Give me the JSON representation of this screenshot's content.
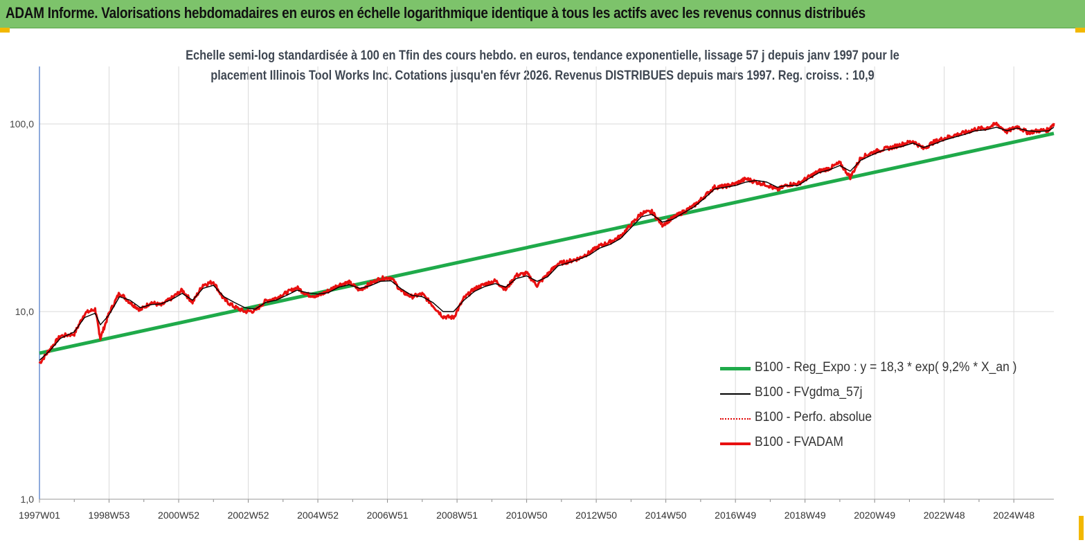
{
  "banner": {
    "title": "ADAM Informe. Valorisations hebdomadaires en euros en échelle logarithmique identique à tous les actifs avec les revenus connus distribués"
  },
  "chart_data": {
    "type": "line",
    "title": "",
    "subtitle_lines": [
      "Echelle semi-log standardisée à 100 en Tfin des cours hebdo. en euros, tendance exponentielle, lissage 57 j depuis janv 1997 pour le",
      "placement Illinois Tool Works Inc. Cotations jusqu'en févr 2026. Revenus DISTRIBUES depuis mars 1997. Reg. croiss. : 10,9"
    ],
    "xlabel": "",
    "ylabel": "",
    "y_scale": "log",
    "ylim": [
      1,
      200
    ],
    "y_ticks": [
      {
        "value": 1,
        "label": "1,0"
      },
      {
        "value": 10,
        "label": "10,0"
      },
      {
        "value": 100,
        "label": "100,0"
      }
    ],
    "x_range": [
      1997.0,
      2026.15
    ],
    "x_ticks": [
      {
        "value": 1997.0,
        "label": "1997W01"
      },
      {
        "value": 1999.0,
        "label": "1998W53"
      },
      {
        "value": 2001.0,
        "label": "2000W52"
      },
      {
        "value": 2003.0,
        "label": "2002W52"
      },
      {
        "value": 2005.0,
        "label": "2004W52"
      },
      {
        "value": 2007.0,
        "label": "2006W51"
      },
      {
        "value": 2009.0,
        "label": "2008W51"
      },
      {
        "value": 2011.0,
        "label": "2010W50"
      },
      {
        "value": 2013.0,
        "label": "2012W50"
      },
      {
        "value": 2015.0,
        "label": "2014W50"
      },
      {
        "value": 2017.0,
        "label": "2016W49"
      },
      {
        "value": 2019.0,
        "label": "2018W49"
      },
      {
        "value": 2021.0,
        "label": "2020W49"
      },
      {
        "value": 2023.0,
        "label": "2022W48"
      },
      {
        "value": 2025.0,
        "label": "2024W48"
      }
    ],
    "grid": true,
    "legend_position": "right",
    "colors": {
      "reg": "#1faa4a",
      "fvgdma": "#000000",
      "perfo": "#e00000",
      "fvadam": "#e81010",
      "axis": "#4472c4",
      "grid": "#d9d9d9"
    },
    "series": [
      {
        "name": "B100 - Reg_Expo : y = 18,3 * exp( 9,2% *  X_an )",
        "style": "reg",
        "x": [
          1997.0,
          2026.15
        ],
        "y": [
          6.0,
          89.0
        ]
      },
      {
        "name": "B100 - FVgdma_57j",
        "style": "fvgdma",
        "x": [
          1997.0,
          1997.3,
          1997.6,
          1998.0,
          1998.3,
          1998.6,
          1998.75,
          1999.0,
          1999.3,
          1999.6,
          1999.9,
          2000.2,
          2000.5,
          2000.8,
          2001.1,
          2001.4,
          2001.7,
          2002.0,
          2002.3,
          2002.6,
          2002.9,
          2003.2,
          2003.5,
          2003.8,
          2004.1,
          2004.4,
          2004.7,
          2005.0,
          2005.3,
          2005.6,
          2005.9,
          2006.2,
          2006.5,
          2006.8,
          2007.1,
          2007.4,
          2007.7,
          2008.0,
          2008.3,
          2008.6,
          2008.9,
          2009.2,
          2009.5,
          2009.8,
          2010.1,
          2010.4,
          2010.7,
          2011.0,
          2011.3,
          2011.6,
          2011.9,
          2012.2,
          2012.5,
          2012.8,
          2013.1,
          2013.4,
          2013.7,
          2014.0,
          2014.3,
          2014.6,
          2014.9,
          2015.2,
          2015.5,
          2015.8,
          2016.1,
          2016.4,
          2016.7,
          2017.0,
          2017.3,
          2017.6,
          2017.9,
          2018.2,
          2018.5,
          2018.8,
          2019.1,
          2019.4,
          2019.7,
          2020.0,
          2020.3,
          2020.6,
          2020.9,
          2021.2,
          2021.5,
          2021.8,
          2022.1,
          2022.4,
          2022.7,
          2023.0,
          2023.3,
          2023.6,
          2023.9,
          2024.2,
          2024.5,
          2024.8,
          2025.1,
          2025.4,
          2025.7,
          2026.0,
          2026.15
        ],
        "y": [
          5.5,
          6.2,
          7.2,
          7.8,
          9.3,
          9.8,
          8.5,
          9.6,
          12.0,
          11.5,
          10.5,
          10.9,
          11.0,
          11.6,
          12.5,
          11.5,
          13.3,
          13.8,
          12.0,
          11.2,
          10.5,
          10.3,
          11.2,
          11.5,
          12.2,
          13.0,
          12.6,
          12.4,
          12.6,
          13.5,
          13.9,
          13.3,
          13.7,
          14.5,
          14.6,
          13.2,
          12.2,
          12.0,
          11.2,
          10.0,
          10.0,
          11.5,
          12.8,
          13.6,
          14.1,
          13.5,
          15.0,
          15.5,
          14.5,
          15.3,
          17.5,
          18.2,
          19.0,
          20.0,
          21.8,
          22.8,
          24.5,
          28.0,
          32.0,
          33.0,
          30.0,
          31.0,
          33.5,
          36.0,
          40.0,
          45.0,
          46.0,
          47.0,
          49.0,
          50.0,
          49.0,
          46.0,
          47.0,
          47.0,
          51.0,
          55.0,
          57.0,
          60.0,
          56.0,
          64.0,
          68.0,
          72.0,
          74.0,
          76.0,
          79.0,
          75.0,
          78.0,
          82.0,
          85.0,
          88.0,
          92.0,
          93.0,
          96.0,
          92.0,
          95.0,
          92.0,
          91.0,
          92.0,
          96.0
        ]
      },
      {
        "name": "B100 - Perfo. absolue",
        "style": "perfo",
        "x": [],
        "y": []
      },
      {
        "name": "B100 - FVADAM",
        "style": "fvadam",
        "x": [
          1997.0,
          1997.3,
          1997.6,
          1998.0,
          1998.3,
          1998.6,
          1998.75,
          1999.0,
          1999.3,
          1999.6,
          1999.9,
          2000.2,
          2000.5,
          2000.8,
          2001.1,
          2001.4,
          2001.7,
          2002.0,
          2002.3,
          2002.6,
          2002.9,
          2003.2,
          2003.5,
          2003.8,
          2004.1,
          2004.4,
          2004.7,
          2005.0,
          2005.3,
          2005.6,
          2005.9,
          2006.2,
          2006.5,
          2006.8,
          2007.1,
          2007.4,
          2007.7,
          2008.0,
          2008.3,
          2008.6,
          2008.9,
          2009.2,
          2009.5,
          2009.8,
          2010.1,
          2010.4,
          2010.7,
          2011.0,
          2011.3,
          2011.6,
          2011.9,
          2012.2,
          2012.5,
          2012.8,
          2013.1,
          2013.4,
          2013.7,
          2014.0,
          2014.3,
          2014.6,
          2014.9,
          2015.2,
          2015.5,
          2015.8,
          2016.1,
          2016.4,
          2016.7,
          2017.0,
          2017.3,
          2017.6,
          2017.9,
          2018.2,
          2018.5,
          2018.8,
          2019.1,
          2019.4,
          2019.7,
          2020.0,
          2020.3,
          2020.6,
          2020.9,
          2021.2,
          2021.5,
          2021.8,
          2022.1,
          2022.4,
          2022.7,
          2023.0,
          2023.3,
          2023.6,
          2023.9,
          2024.2,
          2024.5,
          2024.8,
          2025.1,
          2025.4,
          2025.7,
          2026.0,
          2026.15
        ],
        "y": [
          5.3,
          6.3,
          7.4,
          7.6,
          9.8,
          10.3,
          7.2,
          9.8,
          12.6,
          11.2,
          10.2,
          11.2,
          10.8,
          11.8,
          13.0,
          11.2,
          13.9,
          14.4,
          11.6,
          10.6,
          10.0,
          10.1,
          11.4,
          11.8,
          12.6,
          13.4,
          12.3,
          12.1,
          12.9,
          13.9,
          14.3,
          13.0,
          14.1,
          15.0,
          15.2,
          12.8,
          12.0,
          12.4,
          10.8,
          9.4,
          9.3,
          11.8,
          13.2,
          14.0,
          14.6,
          13.1,
          15.6,
          16.0,
          13.8,
          15.8,
          18.0,
          18.5,
          19.2,
          20.6,
          22.4,
          23.5,
          25.2,
          29.0,
          33.5,
          34.0,
          29.0,
          31.5,
          34.0,
          36.5,
          41.0,
          46.0,
          46.5,
          48.0,
          51.0,
          49.0,
          47.5,
          44.5,
          47.5,
          48.0,
          52.0,
          56.0,
          58.0,
          62.0,
          52.0,
          66.0,
          70.0,
          73.0,
          75.0,
          78.0,
          81.0,
          74.0,
          80.0,
          84.0,
          87.0,
          90.0,
          94.0,
          95.0,
          100.0,
          91.0,
          97.0,
          90.0,
          92.0,
          93.0,
          101.0
        ]
      }
    ]
  }
}
